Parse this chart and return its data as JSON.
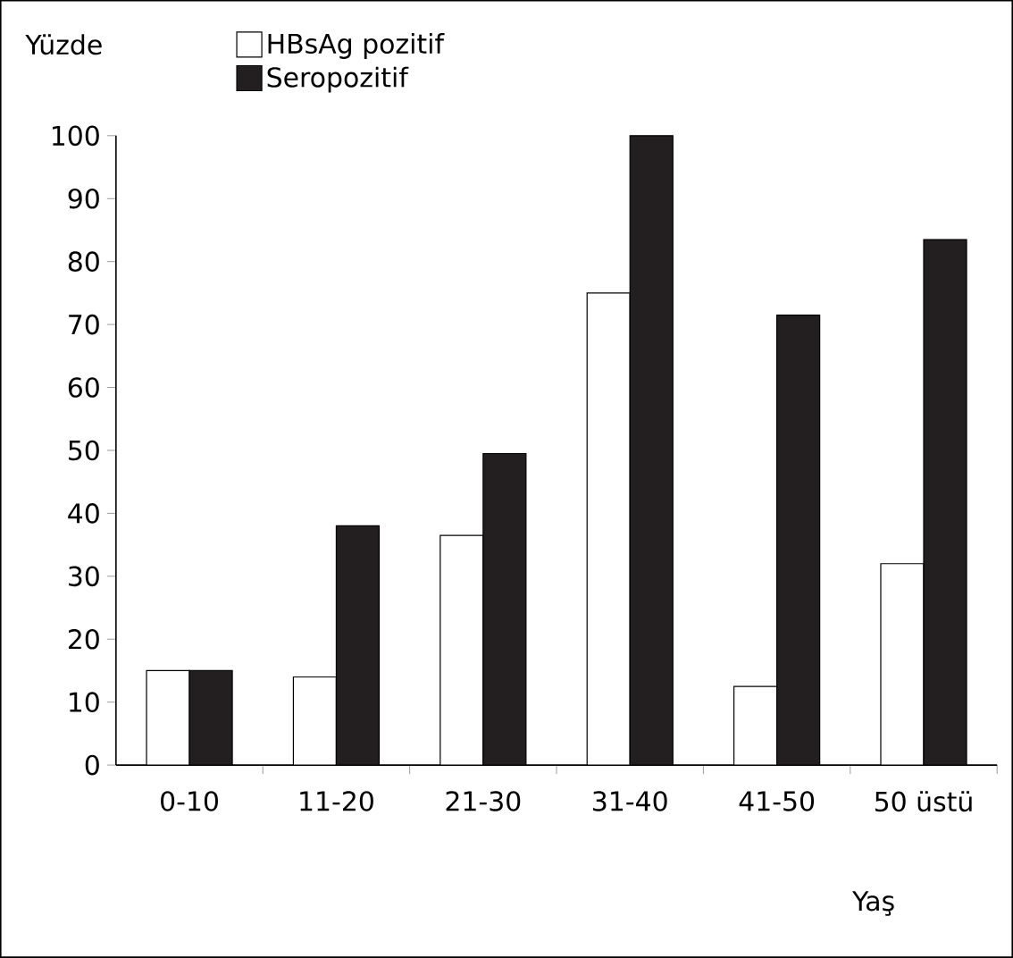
{
  "chart_data": {
    "type": "bar",
    "ylabel": "Yüzde",
    "xlabel": "Yaş",
    "categories": [
      "0-10",
      "11-20",
      "21-30",
      "31-40",
      "41-50",
      "50 üstü"
    ],
    "series": [
      {
        "name": "HBsAg pozitif",
        "color": "#ffffff",
        "values": [
          15,
          14,
          36.5,
          75,
          12.5,
          32
        ]
      },
      {
        "name": "Seropozitif",
        "color": "#231f20",
        "values": [
          15,
          38,
          49.5,
          100,
          71.5,
          83.5
        ]
      }
    ],
    "ylim": [
      0,
      100
    ],
    "yticks": [
      0,
      10,
      20,
      30,
      40,
      50,
      60,
      70,
      80,
      90,
      100
    ],
    "legend": "top left",
    "grid": false
  }
}
